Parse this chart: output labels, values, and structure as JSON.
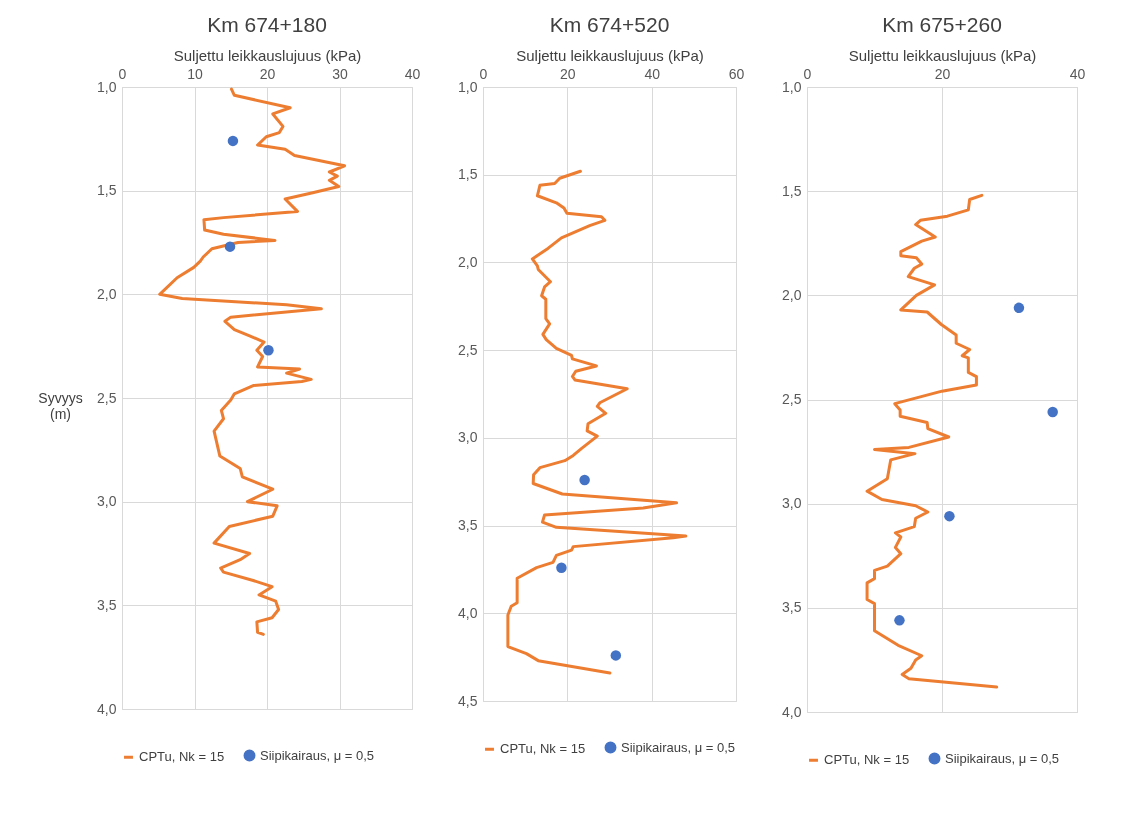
{
  "chart_data": [
    {
      "type": "line",
      "title": "Km 674+180",
      "xlabel": "Suljettu leikkauslujuus (kPa)",
      "ylabel": "Syvyys (m)",
      "orientation": "horizontal",
      "xlim": [
        0,
        40
      ],
      "xticks": [
        0,
        10,
        20,
        30,
        40
      ],
      "ylim": [
        4,
        1
      ],
      "yticks": [
        {
          "value": 1,
          "label": "1,0"
        },
        {
          "value": 1.5,
          "label": "1,5"
        },
        {
          "value": 2,
          "label": "2,0"
        },
        {
          "value": 2.5,
          "label": "2,5"
        },
        {
          "value": 3,
          "label": "3,0"
        },
        {
          "value": 3.5,
          "label": "3,5"
        },
        {
          "value": 4,
          "label": "4,0"
        }
      ],
      "grid": true,
      "legend": "bottom",
      "series": [
        {
          "name": "CPTu, Nk = 15",
          "type": "line",
          "color": "#ed7d31",
          "x": [
            1.01,
            1.04,
            1.1,
            1.13,
            1.19,
            1.22,
            1.24,
            1.28,
            1.3,
            1.33,
            1.38,
            1.41,
            1.43,
            1.45,
            1.48,
            1.51,
            1.54,
            1.6,
            1.63,
            1.64,
            1.69,
            1.71,
            1.74,
            1.75,
            1.78,
            1.82,
            1.84,
            1.87,
            1.92,
            2.0,
            2.02,
            2.05,
            2.07,
            2.11,
            2.13,
            2.17,
            2.2,
            2.23,
            2.27,
            2.3,
            2.35,
            2.36,
            2.38,
            2.41,
            2.42,
            2.44,
            2.48,
            2.51,
            2.56,
            2.6,
            2.66,
            2.78,
            2.84,
            2.88,
            2.94,
            3.0,
            3.02,
            3.07,
            3.12,
            3.2,
            3.25,
            3.28,
            3.32,
            3.34,
            3.38,
            3.41,
            3.45,
            3.48,
            3.52,
            3.56,
            3.58,
            3.63,
            3.64
          ],
          "values": [
            15.1,
            15.5,
            23.2,
            20.8,
            22.2,
            21.7,
            19.9,
            18.7,
            22.5,
            23.8,
            30.7,
            28.6,
            29.7,
            28.6,
            29.9,
            26.3,
            22.5,
            24.2,
            14.0,
            11.3,
            11.4,
            14.0,
            21.1,
            16.0,
            12.4,
            11.2,
            10.8,
            9.9,
            7.6,
            5.2,
            8.3,
            22.7,
            27.5,
            15.0,
            14.2,
            15.5,
            17.6,
            19.6,
            18.6,
            19.4,
            18.7,
            24.5,
            22.7,
            26.1,
            24.8,
            18.1,
            15.5,
            15.0,
            13.7,
            14.0,
            12.7,
            13.5,
            16.3,
            16.6,
            20.8,
            17.3,
            21.4,
            20.8,
            14.8,
            12.7,
            17.6,
            16.3,
            13.6,
            14.0,
            18.1,
            20.7,
            18.9,
            21.2,
            21.6,
            20.7,
            18.6,
            18.7,
            19.5
          ]
        },
        {
          "name": "Siipikairaus, μ = 0,5",
          "type": "scatter",
          "color": "#4472c4",
          "x": [
            1.26,
            1.77,
            2.27
          ],
          "values": [
            15.3,
            14.9,
            20.2
          ]
        }
      ]
    },
    {
      "type": "line",
      "title": "Km 674+520",
      "xlabel": "Suljettu leikkauslujuus (kPa)",
      "orientation": "horizontal",
      "xlim": [
        0,
        60
      ],
      "xticks": [
        0,
        20,
        40,
        60
      ],
      "ylim": [
        4.5,
        1
      ],
      "yticks": [
        {
          "value": 1,
          "label": "1,0"
        },
        {
          "value": 1.5,
          "label": "1,5"
        },
        {
          "value": 2,
          "label": "2,0"
        },
        {
          "value": 2.5,
          "label": "2,5"
        },
        {
          "value": 3,
          "label": "3,0"
        },
        {
          "value": 3.5,
          "label": "3,5"
        },
        {
          "value": 4,
          "label": "4,0"
        },
        {
          "value": 4.5,
          "label": "4,5"
        }
      ],
      "grid": true,
      "legend": "bottom",
      "series": [
        {
          "name": "CPTu, Nk = 15",
          "type": "line",
          "color": "#ed7d31",
          "x": [
            1.48,
            1.52,
            1.55,
            1.56,
            1.62,
            1.66,
            1.69,
            1.72,
            1.74,
            1.76,
            1.79,
            1.86,
            1.92,
            1.98,
            2.02,
            2.04,
            2.11,
            2.14,
            2.19,
            2.21,
            2.32,
            2.35,
            2.41,
            2.44,
            2.49,
            2.53,
            2.55,
            2.59,
            2.62,
            2.65,
            2.67,
            2.72,
            2.8,
            2.82,
            2.86,
            2.92,
            2.96,
            2.99,
            3.06,
            3.1,
            3.13,
            3.17,
            3.21,
            3.26,
            3.32,
            3.37,
            3.4,
            3.44,
            3.48,
            3.51,
            3.56,
            3.57,
            3.62,
            3.64,
            3.67,
            3.71,
            3.74,
            3.8,
            3.94,
            3.96,
            4.01,
            4.19,
            4.23,
            4.27,
            4.34
          ],
          "values": [
            23.1,
            18.2,
            17.0,
            13.5,
            12.9,
            17.4,
            19.2,
            19.9,
            28.1,
            28.9,
            25.3,
            18.6,
            15.4,
            11.7,
            12.9,
            13.1,
            16.0,
            14.6,
            13.9,
            14.9,
            14.9,
            15.8,
            14.2,
            15.0,
            17.4,
            21.0,
            21.2,
            26.9,
            22.0,
            21.2,
            21.8,
            34.2,
            27.7,
            27.1,
            29.1,
            24.9,
            24.7,
            27.1,
            23.4,
            21.4,
            19.4,
            13.5,
            12.0,
            11.9,
            18.8,
            45.9,
            38.0,
            14.6,
            14.1,
            17.4,
            48.1,
            45.1,
            21.4,
            21.0,
            17.4,
            16.6,
            12.7,
            8.1,
            8.1,
            6.7,
            5.9,
            5.9,
            10.3,
            13.1,
            30.1
          ]
        },
        {
          "name": "Siipikairaus, μ = 0,5",
          "type": "scatter",
          "color": "#4472c4",
          "x": [
            3.24,
            3.74,
            4.24
          ],
          "values": [
            24.1,
            18.6,
            31.5
          ]
        }
      ]
    },
    {
      "type": "line",
      "title": "Km 675+260",
      "xlabel": "Suljettu leikkauslujuus (kPa)",
      "orientation": "horizontal",
      "xlim": [
        0,
        40
      ],
      "xticks": [
        0,
        20,
        40
      ],
      "ylim": [
        4,
        1
      ],
      "yticks": [
        {
          "value": 1,
          "label": "1,0"
        },
        {
          "value": 1.5,
          "label": "1,5"
        },
        {
          "value": 2,
          "label": "2,0"
        },
        {
          "value": 2.5,
          "label": "2,5"
        },
        {
          "value": 3,
          "label": "3,0"
        },
        {
          "value": 3.5,
          "label": "3,5"
        },
        {
          "value": 4,
          "label": "4,0"
        }
      ],
      "grid": true,
      "legend": "bottom",
      "series": [
        {
          "name": "CPTu, Nk = 15",
          "type": "line",
          "color": "#ed7d31",
          "x": [
            1.52,
            1.54,
            1.59,
            1.62,
            1.64,
            1.66,
            1.72,
            1.74,
            1.79,
            1.81,
            1.82,
            1.85,
            1.87,
            1.91,
            1.95,
            2.0,
            2.07,
            2.08,
            2.14,
            2.19,
            2.23,
            2.26,
            2.29,
            2.3,
            2.37,
            2.39,
            2.43,
            2.46,
            2.52,
            2.55,
            2.58,
            2.61,
            2.64,
            2.68,
            2.73,
            2.74,
            2.76,
            2.79,
            2.88,
            2.94,
            2.98,
            3.01,
            3.04,
            3.07,
            3.11,
            3.14,
            3.16,
            3.21,
            3.24,
            3.3,
            3.32,
            3.36,
            3.38,
            3.46,
            3.48,
            3.61,
            3.68,
            3.73,
            3.75,
            3.79,
            3.82,
            3.84,
            3.88
          ],
          "values": [
            25.9,
            24.1,
            23.9,
            20.8,
            16.8,
            16.1,
            19.0,
            17.0,
            13.9,
            13.9,
            16.2,
            17.0,
            15.9,
            15.0,
            18.9,
            16.2,
            13.9,
            17.8,
            19.9,
            22.1,
            22.1,
            24.1,
            23.0,
            23.9,
            23.9,
            25.1,
            25.1,
            20.0,
            13.0,
            13.8,
            13.8,
            17.8,
            17.9,
            21.0,
            15.1,
            10.0,
            16.0,
            12.4,
            11.9,
            8.9,
            11.1,
            16.1,
            17.9,
            16.1,
            15.9,
            13.1,
            13.9,
            13.1,
            13.9,
            11.9,
            10.0,
            10.0,
            8.9,
            8.9,
            10.0,
            10.0,
            13.5,
            17.0,
            16.1,
            15.4,
            14.1,
            15.1,
            28.1
          ]
        },
        {
          "name": "Siipikairaus, μ = 0,5",
          "type": "scatter",
          "color": "#4472c4",
          "x": [
            2.06,
            2.56,
            3.06,
            3.56
          ],
          "values": [
            31.4,
            36.4,
            21.1,
            13.7
          ]
        }
      ]
    }
  ]
}
